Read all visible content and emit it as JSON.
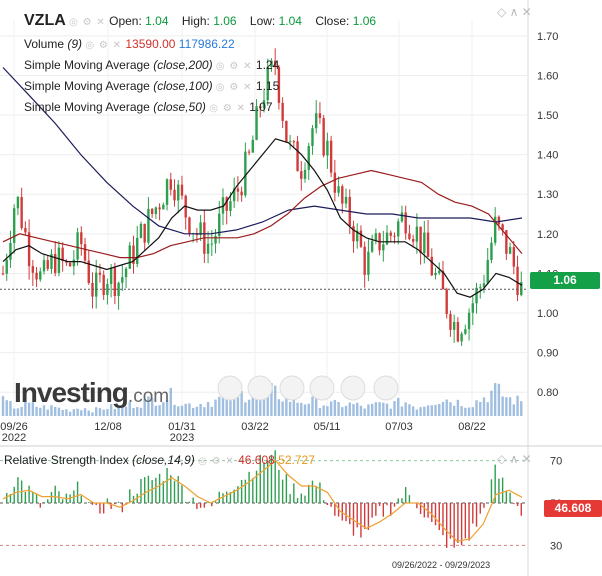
{
  "header": {
    "symbol": "VZLA",
    "open_label": "Open:",
    "open": "1.04",
    "high_label": "High:",
    "high": "1.06",
    "low_label": "Low:",
    "low": "1.04",
    "close_label": "Close:",
    "close": "1.06"
  },
  "legend": {
    "volume_label": "Volume",
    "volume_param": "(9)",
    "volume_value": "13590.00",
    "volume_avg": "117986.22",
    "sma_label": "Simple Moving Average",
    "sma200_param": "(close,200)",
    "sma200_value": "1.24",
    "sma100_param": "(close,100)",
    "sma100_value": "1.15",
    "sma50_param": "(close,50)",
    "sma50_value": "1.07",
    "rsi_label": "Relative Strength Index",
    "rsi_param": "(close,14,9)",
    "rsi_value": "46.608",
    "rsi_signal": "52.727"
  },
  "price_tag": "1.06",
  "rsi_tag": "46.608",
  "date_range": "09/26/2022 - 09/29/2023",
  "watermark": {
    "brand": "Investing",
    "suffix": ".com"
  },
  "colors": {
    "up": "#2e9e4f",
    "down": "#d13b3b",
    "sma200": "#1c1c5a",
    "sma100": "#9b1c1c",
    "sma50": "#111111",
    "volume": "#7fa8d6",
    "rsi_signal": "#f0a030",
    "price_tag": "#14a047",
    "rsi_tag": "#e53935"
  },
  "chart_data": [
    {
      "type": "candlestick",
      "x_tick_labels": [
        "09/26\n2022",
        "12/08",
        "01/31\n2023",
        "03/22",
        "05/11",
        "07/03",
        "08/22"
      ],
      "y_tick_labels": [
        "0.80",
        "0.90",
        "1.00",
        "1.10",
        "1.20",
        "1.30",
        "1.40",
        "1.50",
        "1.60",
        "1.70"
      ],
      "ylim": [
        0.74,
        1.74
      ],
      "last_price": 1.06,
      "close_series": [
        1.1,
        1.3,
        1.16,
        1.08,
        1.14,
        1.11,
        1.18,
        1.05,
        1.1,
        1.08,
        1.15,
        1.22,
        1.28,
        1.35,
        1.26,
        1.2,
        1.17,
        1.25,
        1.3,
        1.39,
        1.55,
        1.63,
        1.42,
        1.37,
        1.48,
        1.42,
        1.28,
        1.22,
        1.12,
        1.18,
        1.2,
        1.25,
        1.2,
        1.12,
        1.04,
        0.96,
        1.01,
        1.08,
        1.22,
        1.16,
        1.06
      ],
      "sma50": [
        1.13,
        1.16,
        1.17,
        1.15,
        1.14,
        1.13,
        1.13,
        1.12,
        1.11,
        1.12,
        1.13,
        1.16,
        1.19,
        1.24,
        1.27,
        1.26,
        1.26,
        1.27,
        1.32,
        1.36,
        1.4,
        1.44,
        1.43,
        1.4,
        1.36,
        1.31,
        1.24,
        1.21,
        1.19,
        1.18,
        1.18,
        1.18,
        1.16,
        1.13,
        1.1,
        1.05,
        1.04,
        1.06,
        1.1,
        1.09,
        1.07
      ],
      "sma100": [
        1.18,
        1.2,
        1.19,
        1.18,
        1.17,
        1.16,
        1.15,
        1.14,
        1.14,
        1.15,
        1.17,
        1.18,
        1.19,
        1.19,
        1.19,
        1.2,
        1.22,
        1.25,
        1.29,
        1.32,
        1.34,
        1.35,
        1.36,
        1.35,
        1.34,
        1.33,
        1.3,
        1.28,
        1.27,
        1.25,
        1.2,
        1.15
      ],
      "sma200": [
        1.62,
        1.55,
        1.48,
        1.4,
        1.33,
        1.27,
        1.22,
        1.2,
        1.2,
        1.21,
        1.23,
        1.26,
        1.27,
        1.26,
        1.25,
        1.25,
        1.24,
        1.24,
        1.24,
        1.23,
        1.24
      ],
      "volume": [
        5,
        3,
        4,
        3,
        3,
        2,
        3,
        2,
        3,
        3,
        4,
        5,
        6,
        7,
        4,
        4,
        5,
        6,
        7,
        8,
        9,
        8,
        6,
        5,
        5,
        4,
        4,
        4,
        3,
        4,
        4,
        5,
        3,
        5,
        6,
        5,
        4,
        6,
        9,
        6,
        5
      ]
    },
    {
      "type": "bar",
      "name": "Relative Strength Index",
      "y_tick_labels": [
        "30",
        "50",
        "70"
      ],
      "ylim": [
        25,
        75
      ],
      "value": 46.608,
      "signal": 52.727,
      "rsi": [
        52,
        62,
        56,
        48,
        55,
        51,
        58,
        44,
        50,
        47,
        56,
        60,
        62,
        66,
        55,
        50,
        47,
        56,
        60,
        64,
        70,
        72,
        58,
        55,
        60,
        52,
        40,
        38,
        34,
        45,
        48,
        55,
        50,
        40,
        33,
        28,
        35,
        45,
        65,
        55,
        46.6
      ],
      "rsi_ma": [
        52,
        55,
        56,
        53,
        53,
        52,
        54,
        50,
        50,
        48,
        51,
        55,
        58,
        62,
        58,
        53,
        50,
        53,
        56,
        60,
        65,
        70,
        63,
        58,
        58,
        55,
        46,
        42,
        38,
        41,
        45,
        50,
        50,
        45,
        38,
        32,
        33,
        40,
        54,
        56,
        52.7
      ]
    }
  ]
}
